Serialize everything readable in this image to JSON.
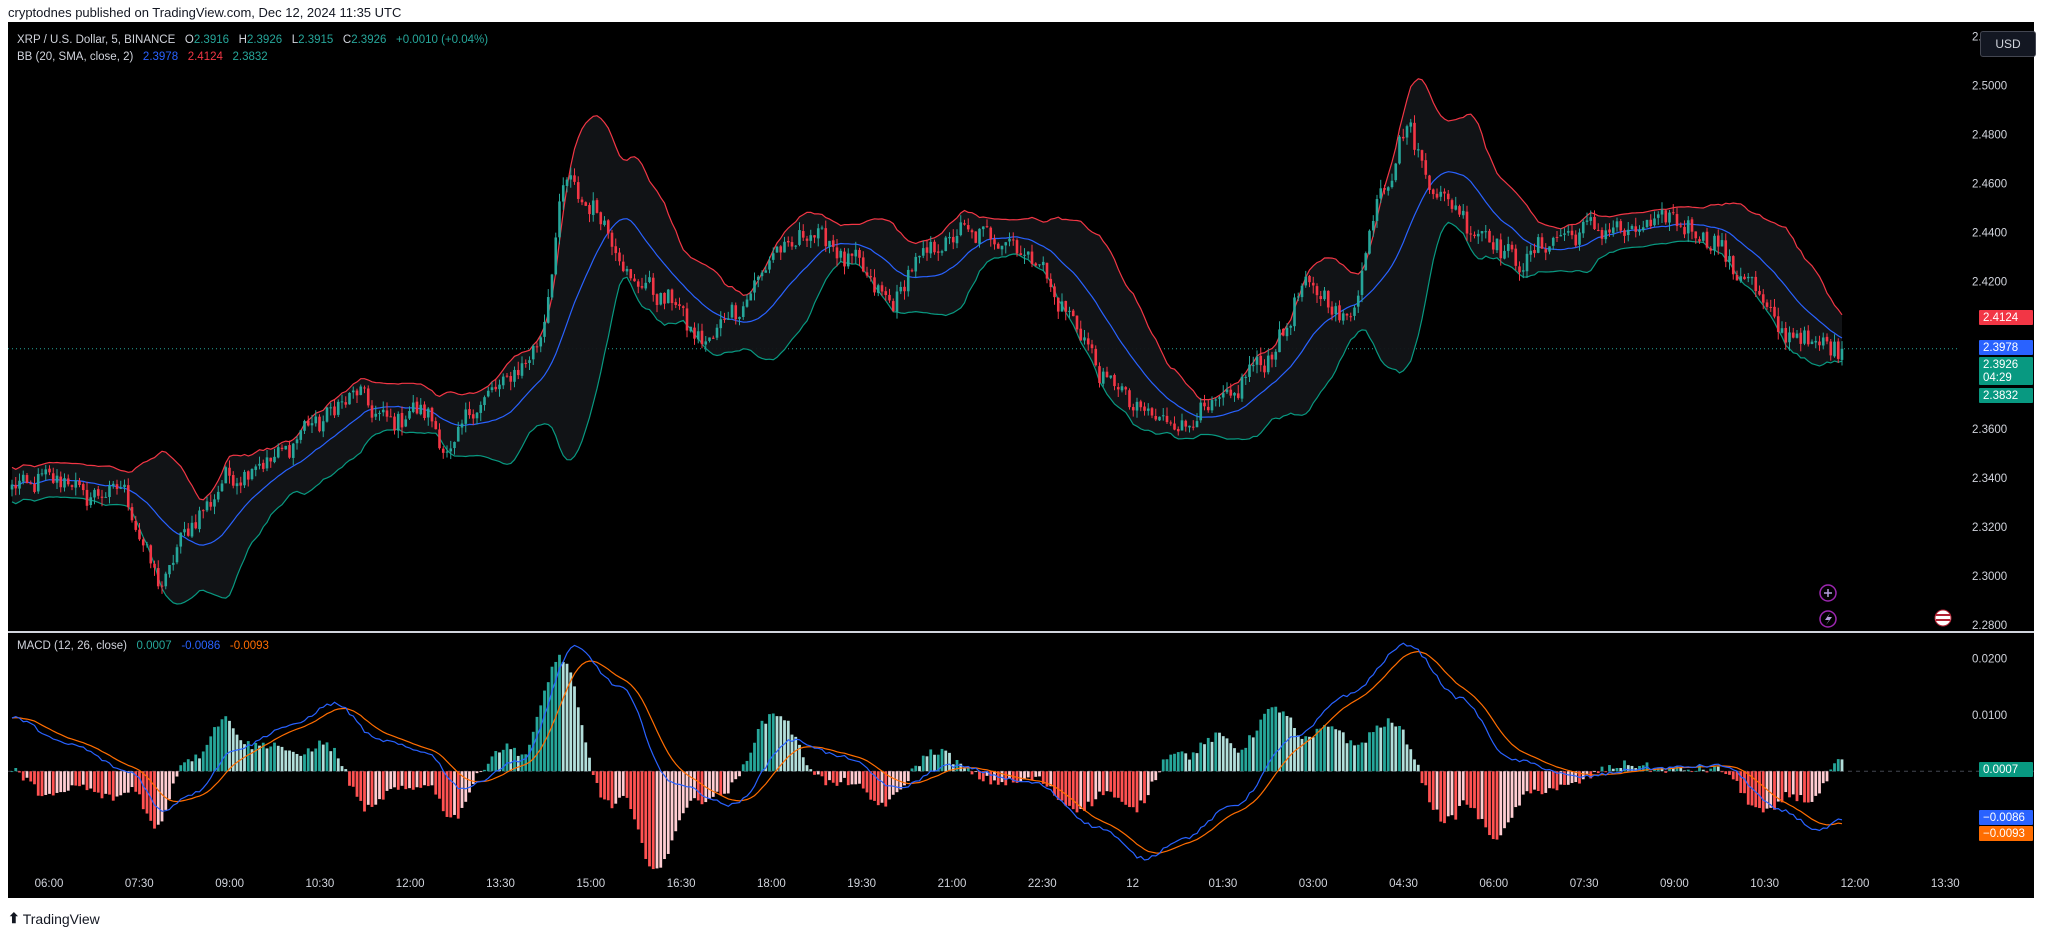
{
  "header": {
    "published": "cryptodnes published on TradingView.com, Dec 12, 2024 11:35 UTC"
  },
  "footer": {
    "brand": "TradingView",
    "logo": "tradingview-logo-icon"
  },
  "colors": {
    "background": "#000000",
    "up": "#26a69a",
    "down": "#f23645",
    "bb_upper": "#f23645",
    "bb_basis": "#2962ff",
    "bb_lower": "#089981",
    "macd": "#2962ff",
    "signal": "#ff6d00"
  },
  "legend": {
    "symbol": "XRP / U.S. Dollar, 5, BINANCE",
    "o_label": "O",
    "o_value": "2.3916",
    "h_label": "H",
    "h_value": "2.3926",
    "l_label": "L",
    "l_value": "2.3915",
    "c_label": "C",
    "c_value": "2.3926",
    "change": "+0.0010 (+0.04%)",
    "bb_label": "BB (20, SMA, close, 2)",
    "bb_basis": "2.3978",
    "bb_upper": "2.4124",
    "bb_lower": "2.3832",
    "macd_label": "MACD (12, 26, close)",
    "macd_hist": "0.0007",
    "macd_line": "-0.0086",
    "macd_signal": "-0.0093"
  },
  "currency_button": "USD",
  "price_labels": {
    "bb_upper": "2.4124",
    "bb_basis": "2.3978",
    "last": "2.3926",
    "countdown": "04:29",
    "bb_lower": "2.3832",
    "macd_hist": "0.0007",
    "macd_line": "−0.0086",
    "macd_signal": "−0.0093"
  },
  "icons": [
    "add-alert-icon",
    "lightning-icon",
    "us-flag-icon"
  ],
  "chart_data": [
    {
      "type": "candlestick",
      "title": "XRP / U.S. Dollar, 5, BINANCE",
      "ylim": [
        2.28,
        2.525
      ],
      "y_ticks": [
        "2.5200",
        "2.5000",
        "2.4800",
        "2.4600",
        "2.4400",
        "2.4200",
        "2.3600",
        "2.3400",
        "2.3200",
        "2.3000",
        "2.2800"
      ],
      "y_tick_values": [
        2.52,
        2.5,
        2.48,
        2.46,
        2.44,
        2.42,
        2.36,
        2.34,
        2.32,
        2.3,
        2.28
      ],
      "x_ticks": [
        "06:00",
        "07:30",
        "09:00",
        "10:30",
        "12:00",
        "13:30",
        "15:00",
        "16:30",
        "18:00",
        "19:30",
        "21:00",
        "22:30",
        "12",
        "01:30",
        "03:00",
        "04:30",
        "06:00",
        "07:30",
        "09:00",
        "10:30",
        "12:00",
        "13:30"
      ],
      "last_price": 2.3926,
      "close_anchors": [
        [
          0,
          2.336
        ],
        [
          12,
          2.34
        ],
        [
          22,
          2.332
        ],
        [
          28,
          2.336
        ],
        [
          40,
          2.298
        ],
        [
          48,
          2.322
        ],
        [
          58,
          2.34
        ],
        [
          70,
          2.348
        ],
        [
          80,
          2.362
        ],
        [
          92,
          2.374
        ],
        [
          100,
          2.363
        ],
        [
          110,
          2.368
        ],
        [
          116,
          2.35
        ],
        [
          124,
          2.37
        ],
        [
          134,
          2.382
        ],
        [
          140,
          2.394
        ],
        [
          148,
          2.46
        ],
        [
          156,
          2.448
        ],
        [
          166,
          2.42
        ],
        [
          176,
          2.412
        ],
        [
          184,
          2.395
        ],
        [
          194,
          2.41
        ],
        [
          204,
          2.432
        ],
        [
          214,
          2.44
        ],
        [
          224,
          2.428
        ],
        [
          234,
          2.412
        ],
        [
          244,
          2.432
        ],
        [
          254,
          2.44
        ],
        [
          264,
          2.438
        ],
        [
          272,
          2.43
        ],
        [
          282,
          2.406
        ],
        [
          292,
          2.38
        ],
        [
          302,
          2.366
        ],
        [
          312,
          2.362
        ],
        [
          322,
          2.37
        ],
        [
          334,
          2.388
        ],
        [
          346,
          2.418
        ],
        [
          356,
          2.405
        ],
        [
          366,
          2.46
        ],
        [
          372,
          2.482
        ],
        [
          380,
          2.456
        ],
        [
          392,
          2.44
        ],
        [
          402,
          2.428
        ],
        [
          412,
          2.438
        ],
        [
          422,
          2.442
        ],
        [
          432,
          2.44
        ],
        [
          442,
          2.446
        ],
        [
          452,
          2.438
        ],
        [
          462,
          2.422
        ],
        [
          472,
          2.4
        ],
        [
          482,
          2.394
        ],
        [
          488,
          2.3926
        ]
      ],
      "bollinger": {
        "basis_last": 2.3978,
        "upper_last": 2.4124,
        "lower_last": 2.3832
      }
    },
    {
      "type": "histogram",
      "title": "MACD (12, 26, close)",
      "ylim": [
        -0.0175,
        0.0245
      ],
      "y_ticks": [
        "0.0200",
        "0.0100"
      ],
      "y_tick_values": [
        0.02,
        0.01
      ],
      "macd_anchors": [
        [
          0,
          0.0095
        ],
        [
          15,
          0.0048
        ],
        [
          32,
          -0.0002
        ],
        [
          40,
          -0.007
        ],
        [
          48,
          -0.004
        ],
        [
          60,
          0.004
        ],
        [
          74,
          0.008
        ],
        [
          86,
          0.012
        ],
        [
          98,
          0.0055
        ],
        [
          110,
          0.0035
        ],
        [
          120,
          -0.003
        ],
        [
          136,
          0.002
        ],
        [
          150,
          0.022
        ],
        [
          162,
          0.015
        ],
        [
          176,
          -0.002
        ],
        [
          192,
          -0.006
        ],
        [
          208,
          0.0055
        ],
        [
          222,
          0.0025
        ],
        [
          236,
          -0.003
        ],
        [
          250,
          0.001
        ],
        [
          272,
          -0.002
        ],
        [
          290,
          -0.01
        ],
        [
          302,
          -0.0155
        ],
        [
          312,
          -0.012
        ],
        [
          326,
          -0.006
        ],
        [
          342,
          0.006
        ],
        [
          356,
          0.0135
        ],
        [
          372,
          0.0225
        ],
        [
          386,
          0.013
        ],
        [
          400,
          0.002
        ],
        [
          418,
          -0.001
        ],
        [
          436,
          0.0005
        ],
        [
          456,
          0.001
        ],
        [
          472,
          -0.007
        ],
        [
          482,
          -0.0105
        ],
        [
          488,
          -0.0086
        ]
      ],
      "last_values": {
        "histogram": 0.0007,
        "macd": -0.0086,
        "signal": -0.0093
      }
    }
  ]
}
